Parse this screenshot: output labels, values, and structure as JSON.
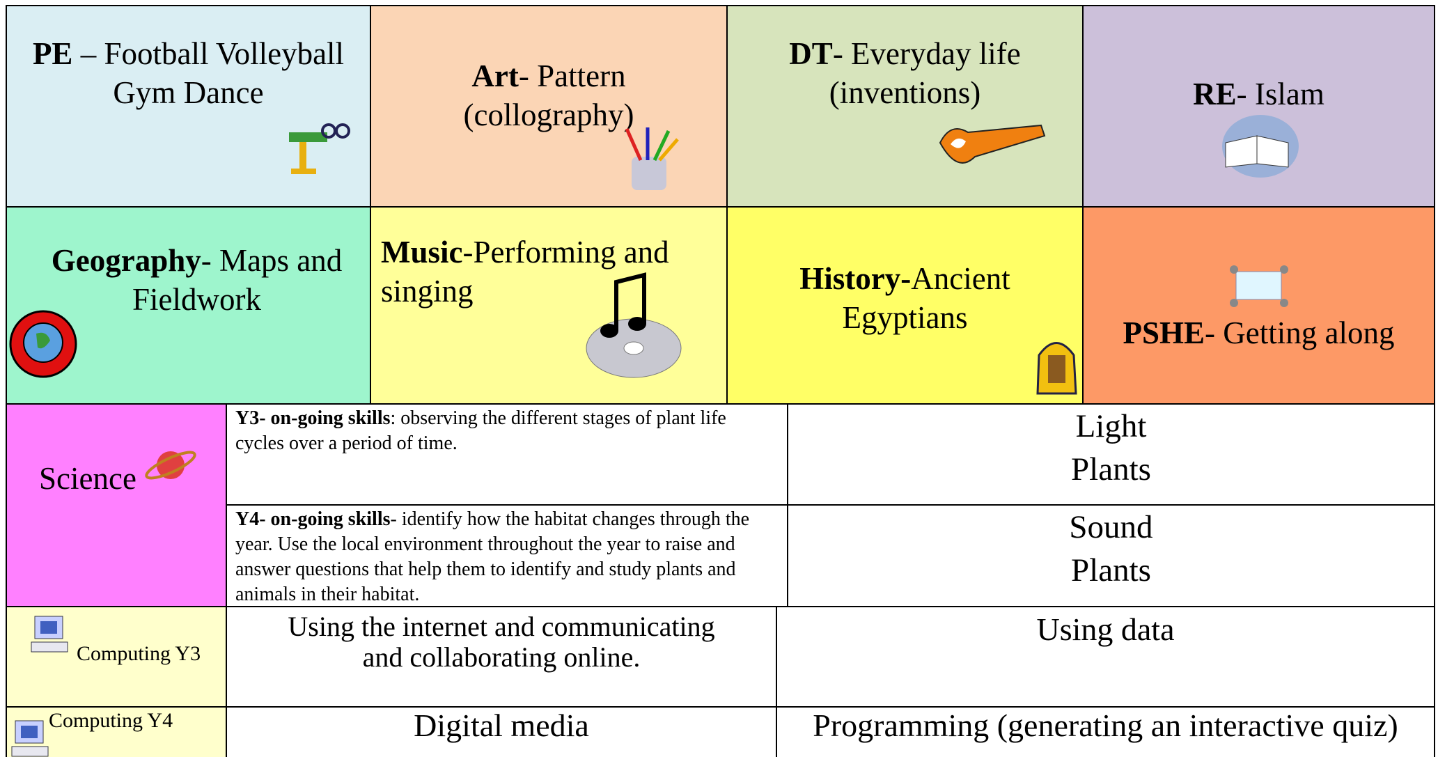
{
  "subjects": [
    {
      "bold": "PE",
      "text": " – Football Volleyball Gym Dance"
    },
    {
      "bold": "Art",
      "text": "- Pattern (collography)"
    },
    {
      "bold": "DT",
      "text": "- Everyday life (inventions)"
    },
    {
      "bold": "RE",
      "text": "- Islam"
    },
    {
      "bold": "Geography",
      "text": "- Maps and Fieldwork"
    },
    {
      "bold": "Music",
      "text": "-Performing and singing"
    },
    {
      "bold": "History-",
      "text": "Ancient Egyptians"
    },
    {
      "bold": "PSHE",
      "text": "- Getting along"
    }
  ],
  "science": {
    "label": "Science",
    "rows": [
      {
        "bold": "Y3- on-going skills",
        "text": ": observing the different stages of plant life cycles over a period of time.",
        "topics": [
          "Light",
          "Plants"
        ]
      },
      {
        "bold": "Y4- on-going skills",
        "text": "- identify how the habitat changes through the year. Use the local environment throughout the year to raise and answer questions that help them to identify and study plants and animals in their habitat.",
        "topics": [
          "Sound",
          "Plants"
        ]
      }
    ]
  },
  "computing": [
    {
      "label": "Computing Y3",
      "autumn": "Using the internet and communicating and collaborating online.",
      "spring": "Using data"
    },
    {
      "label": "Computing Y4",
      "autumn": "Digital media",
      "spring": "Programming (generating an interactive quiz)"
    }
  ]
}
